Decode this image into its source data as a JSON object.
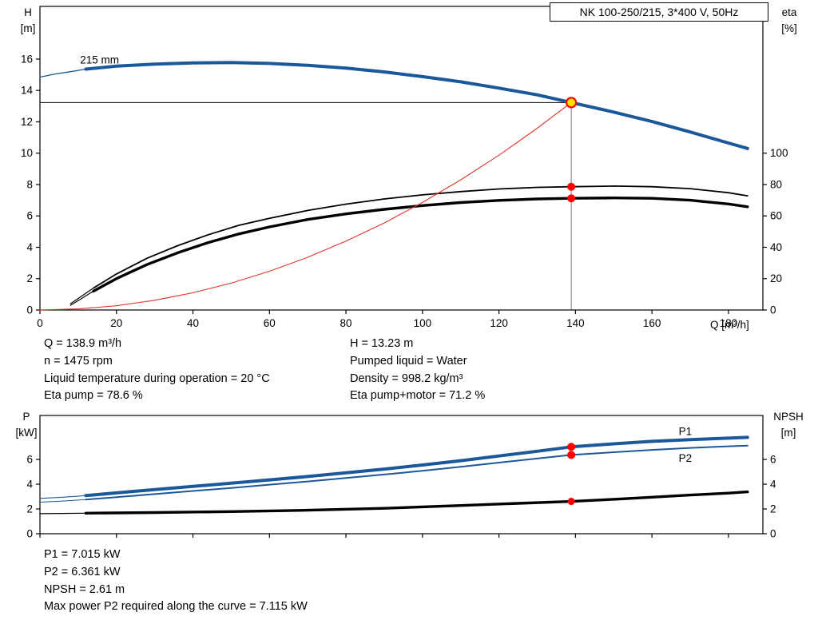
{
  "chart_data": [
    {
      "type": "line",
      "title": "NK 100-250/215, 3*400 V, 50Hz",
      "xlabel": "Q [m³/h]",
      "ylabel_left": [
        "H",
        "[m]"
      ],
      "ylabel_right": [
        "eta",
        "[%]"
      ],
      "xlim": [
        0,
        189
      ],
      "ylim_left": [
        0,
        19.36
      ],
      "ylim_right": [
        0,
        193.6
      ],
      "x_ticks": [
        0,
        20,
        40,
        60,
        80,
        100,
        120,
        140,
        160,
        180
      ],
      "x_tick_labels": true,
      "y_ticks_left": [
        0,
        2,
        4,
        6,
        8,
        10,
        12,
        14,
        16
      ],
      "y_ticks_right": [
        0,
        20,
        40,
        60,
        80,
        100
      ],
      "grid": false,
      "guides": {
        "x": 138.9,
        "y": 13.23
      },
      "series": [
        {
          "name": "head-curve-lead",
          "axis": "left",
          "color": "#1b5899",
          "width": 1.3,
          "points": [
            [
              0,
              14.85
            ],
            [
              4,
              15.05
            ],
            [
              8,
              15.2
            ],
            [
              12,
              15.36
            ]
          ]
        },
        {
          "name": "head-curve-215mm",
          "axis": "left",
          "color": "#1b5899",
          "width": 4,
          "label": "215 mm",
          "label_color": "#000000",
          "label_at": [
            10.5,
            15.72
          ],
          "points": [
            [
              12,
              15.36
            ],
            [
              20,
              15.55
            ],
            [
              30,
              15.68
            ],
            [
              40,
              15.76
            ],
            [
              50,
              15.78
            ],
            [
              60,
              15.72
            ],
            [
              70,
              15.6
            ],
            [
              80,
              15.42
            ],
            [
              90,
              15.18
            ],
            [
              100,
              14.88
            ],
            [
              110,
              14.55
            ],
            [
              120,
              14.15
            ],
            [
              130,
              13.72
            ],
            [
              138.9,
              13.23
            ],
            [
              150,
              12.62
            ],
            [
              160,
              12.02
            ],
            [
              170,
              11.35
            ],
            [
              180,
              10.65
            ],
            [
              185,
              10.3
            ]
          ]
        },
        {
          "name": "eta-pump-lead",
          "axis": "right",
          "color": "#000000",
          "width": 1.2,
          "points": [
            [
              8,
              4
            ],
            [
              14,
              14
            ]
          ]
        },
        {
          "name": "eta-pump-curve",
          "axis": "right",
          "color": "#000000",
          "width": 1.8,
          "points": [
            [
              14,
              14
            ],
            [
              20,
              23
            ],
            [
              28,
              33
            ],
            [
              36,
              41
            ],
            [
              44,
              48
            ],
            [
              52,
              54
            ],
            [
              60,
              58.5
            ],
            [
              70,
              63.5
            ],
            [
              80,
              67.5
            ],
            [
              90,
              70.8
            ],
            [
              100,
              73.4
            ],
            [
              110,
              75.5
            ],
            [
              120,
              77.2
            ],
            [
              130,
              78.2
            ],
            [
              138.9,
              78.6
            ],
            [
              150,
              79
            ],
            [
              160,
              78.6
            ],
            [
              170,
              77.4
            ],
            [
              180,
              74.8
            ],
            [
              185,
              72.8
            ]
          ]
        },
        {
          "name": "eta-pump-motor-lead",
          "axis": "right",
          "color": "#000000",
          "width": 1.2,
          "points": [
            [
              8,
              3
            ],
            [
              14,
              12
            ]
          ]
        },
        {
          "name": "eta-pump-motor-curve",
          "axis": "right",
          "color": "#000000",
          "width": 3.4,
          "points": [
            [
              14,
              12
            ],
            [
              20,
              20
            ],
            [
              28,
              29
            ],
            [
              36,
              36.5
            ],
            [
              44,
              43
            ],
            [
              52,
              48.5
            ],
            [
              60,
              53
            ],
            [
              70,
              57.7
            ],
            [
              80,
              61.3
            ],
            [
              90,
              64.2
            ],
            [
              100,
              66.6
            ],
            [
              110,
              68.5
            ],
            [
              120,
              69.9
            ],
            [
              130,
              70.8
            ],
            [
              138.9,
              71.2
            ],
            [
              150,
              71.5
            ],
            [
              160,
              71.2
            ],
            [
              170,
              70
            ],
            [
              180,
              67.6
            ],
            [
              185,
              65.8
            ]
          ]
        },
        {
          "name": "system-curve",
          "axis": "left",
          "color": "#e0362c",
          "width": 1.1,
          "points": [
            [
              0,
              0
            ],
            [
              10,
              0.07
            ],
            [
              20,
              0.27
            ],
            [
              30,
              0.62
            ],
            [
              40,
              1.1
            ],
            [
              50,
              1.71
            ],
            [
              60,
              2.47
            ],
            [
              70,
              3.36
            ],
            [
              80,
              4.39
            ],
            [
              90,
              5.55
            ],
            [
              100,
              6.86
            ],
            [
              110,
              8.3
            ],
            [
              120,
              9.87
            ],
            [
              130,
              11.59
            ],
            [
              138.9,
              13.23
            ]
          ]
        }
      ],
      "markers": [
        {
          "name": "eta-pump-point",
          "x": 138.9,
          "value": 78.6,
          "axis": "right",
          "r": 5,
          "fill": "#ff0000"
        },
        {
          "name": "eta-pump-motor-point",
          "x": 138.9,
          "value": 71.2,
          "axis": "right",
          "r": 5,
          "fill": "#ff0000"
        },
        {
          "name": "duty-point",
          "x": 138.9,
          "value": 13.23,
          "axis": "left",
          "r": 6,
          "fill": "#ffe000",
          "stroke": "#ff0000",
          "sw": 2.2,
          "draggable": true
        }
      ]
    },
    {
      "type": "line",
      "title": "",
      "xlabel": "",
      "ylabel_left": [
        "P",
        "[kW]"
      ],
      "ylabel_right": [
        "NPSH",
        "[m]"
      ],
      "xlim": [
        0,
        189
      ],
      "ylim_left": [
        0,
        9.55
      ],
      "ylim_right": [
        0,
        9.55
      ],
      "x_ticks": [
        0,
        20,
        40,
        60,
        80,
        100,
        120,
        140,
        160,
        180
      ],
      "x_tick_labels": false,
      "y_ticks_left": [
        0,
        2,
        4,
        6
      ],
      "y_ticks_right": [
        0,
        2,
        4,
        6
      ],
      "grid": false,
      "series": [
        {
          "name": "p1-curve-lead",
          "axis": "left",
          "color": "#1b5899",
          "width": 1.2,
          "points": [
            [
              0,
              2.85
            ],
            [
              6,
              2.95
            ],
            [
              12,
              3.08
            ]
          ]
        },
        {
          "name": "p1-curve",
          "axis": "left",
          "color": "#1b5899",
          "width": 4,
          "label": "P1",
          "label_color": "#1b5899",
          "label_at": [
            167,
            7.98
          ],
          "points": [
            [
              12,
              3.08
            ],
            [
              20,
              3.3
            ],
            [
              30,
              3.56
            ],
            [
              40,
              3.82
            ],
            [
              50,
              4.08
            ],
            [
              60,
              4.35
            ],
            [
              70,
              4.62
            ],
            [
              80,
              4.92
            ],
            [
              90,
              5.22
            ],
            [
              100,
              5.55
            ],
            [
              110,
              5.9
            ],
            [
              120,
              6.28
            ],
            [
              130,
              6.66
            ],
            [
              138.9,
              7.015
            ],
            [
              150,
              7.26
            ],
            [
              160,
              7.46
            ],
            [
              170,
              7.6
            ],
            [
              180,
              7.72
            ],
            [
              185,
              7.78
            ]
          ]
        },
        {
          "name": "p2-curve-lead",
          "axis": "left",
          "color": "#1b5899",
          "width": 1,
          "points": [
            [
              0,
              2.55
            ],
            [
              6,
              2.64
            ],
            [
              12,
              2.76
            ]
          ]
        },
        {
          "name": "p2-curve",
          "axis": "left",
          "color": "#1b5899",
          "width": 2,
          "label": "P2",
          "label_color": "#1b5899",
          "label_at": [
            167,
            5.82
          ],
          "points": [
            [
              12,
              2.76
            ],
            [
              20,
              2.95
            ],
            [
              30,
              3.2
            ],
            [
              40,
              3.45
            ],
            [
              50,
              3.7
            ],
            [
              60,
              3.96
            ],
            [
              70,
              4.22
            ],
            [
              80,
              4.5
            ],
            [
              90,
              4.78
            ],
            [
              100,
              5.08
            ],
            [
              110,
              5.4
            ],
            [
              120,
              5.74
            ],
            [
              130,
              6.07
            ],
            [
              138.9,
              6.361
            ],
            [
              150,
              6.58
            ],
            [
              160,
              6.77
            ],
            [
              170,
              6.93
            ],
            [
              180,
              7.06
            ],
            [
              185,
              7.115
            ]
          ]
        },
        {
          "name": "npsh-curve-lead",
          "axis": "left",
          "color": "#000000",
          "width": 1.2,
          "points": [
            [
              0,
              1.62
            ],
            [
              6,
              1.64
            ],
            [
              12,
              1.66
            ]
          ]
        },
        {
          "name": "npsh-curve",
          "axis": "left",
          "color": "#000000",
          "width": 3.4,
          "points": [
            [
              12,
              1.66
            ],
            [
              30,
              1.71
            ],
            [
              50,
              1.79
            ],
            [
              70,
              1.9
            ],
            [
              90,
              2.05
            ],
            [
              110,
              2.28
            ],
            [
              125,
              2.45
            ],
            [
              138.9,
              2.61
            ],
            [
              150,
              2.78
            ],
            [
              160,
              2.95
            ],
            [
              170,
              3.12
            ],
            [
              180,
              3.28
            ],
            [
              185,
              3.38
            ]
          ]
        }
      ],
      "markers": [
        {
          "name": "p1-point",
          "x": 138.9,
          "value": 7.015,
          "axis": "left",
          "r": 5,
          "fill": "#ff0000"
        },
        {
          "name": "p2-point",
          "x": 138.9,
          "value": 6.361,
          "axis": "left",
          "r": 5,
          "fill": "#ff0000"
        },
        {
          "name": "npsh-point",
          "x": 138.9,
          "value": 2.61,
          "axis": "left",
          "r": 4.5,
          "fill": "#ff0000"
        }
      ]
    }
  ],
  "operating_point": {
    "q": "Q = 138.9 m³/h",
    "n": "n = 1475 rpm",
    "liquid_temp": "Liquid temperature during operation = 20 °C",
    "eta_pump": "Eta pump = 78.6 %",
    "h": "H = 13.23 m",
    "pumped_liquid": "Pumped liquid = Water",
    "density": "Density = 998.2 kg/m³",
    "eta_pump_motor": "Eta pump+motor = 71.2 %"
  },
  "power_results": {
    "p1": "P1 = 7.015 kW",
    "p2": "P2 = 6.361 kW",
    "npsh": "NPSH = 2.61 m",
    "max_p2": "Max power P2 required along the curve = 7.115 kW"
  },
  "colors": {
    "curve_blue": "#1b5899",
    "curve_black": "#000000",
    "system_red": "#e0362c",
    "marker_red": "#ff0000",
    "duty_yellow": "#ffe000"
  }
}
